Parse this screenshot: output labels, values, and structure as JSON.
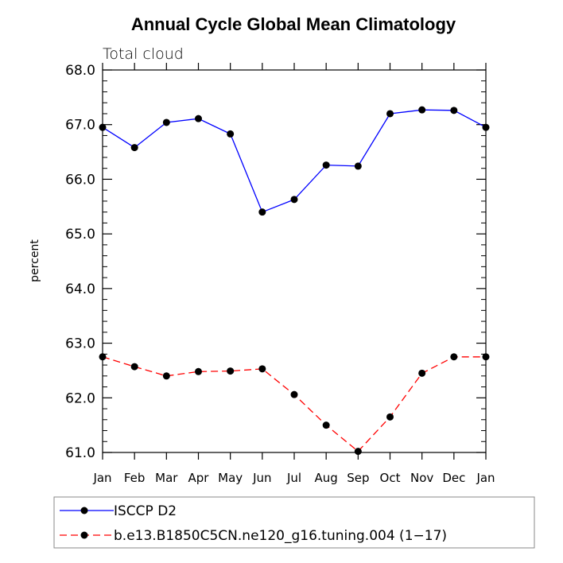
{
  "chart_data": {
    "type": "line",
    "title": "Annual Cycle Global Mean Climatology",
    "subtitle": "Total cloud",
    "xlabel": "",
    "ylabel": "percent",
    "categories": [
      "Jan",
      "Feb",
      "Mar",
      "Apr",
      "May",
      "Jun",
      "Jul",
      "Aug",
      "Sep",
      "Oct",
      "Nov",
      "Dec",
      "Jan"
    ],
    "ylim": [
      61.0,
      68.0
    ],
    "yticks": [
      "61.0",
      "62.0",
      "63.0",
      "64.0",
      "65.0",
      "66.0",
      "67.0",
      "68.0"
    ],
    "legend_position": "bottom",
    "series": [
      {
        "name": "ISCCP D2",
        "color": "#0000ff",
        "dash": "solid",
        "values": [
          66.95,
          66.58,
          67.04,
          67.11,
          66.83,
          65.4,
          65.63,
          66.26,
          66.24,
          67.2,
          67.27,
          67.26,
          66.95
        ]
      },
      {
        "name": "b.e13.B1850C5CN.ne120_g16.tuning.004 (1−17)",
        "color": "#ff0000",
        "dash": "dashed",
        "values": [
          62.75,
          62.57,
          62.4,
          62.48,
          62.49,
          62.53,
          62.06,
          61.5,
          61.02,
          61.65,
          62.45,
          62.75,
          62.75
        ]
      }
    ]
  }
}
